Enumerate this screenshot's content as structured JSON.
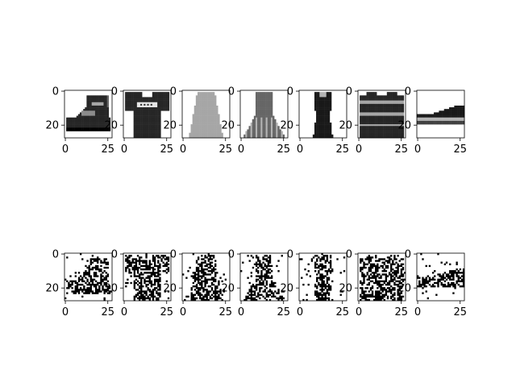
{
  "figure": {
    "rows": [
      {
        "kind": "original",
        "panels": [
          {
            "content": "ankle-boot"
          },
          {
            "content": "t-shirt"
          },
          {
            "content": "dress"
          },
          {
            "content": "dress"
          },
          {
            "content": "dress"
          },
          {
            "content": "pullover"
          },
          {
            "content": "sneaker"
          }
        ]
      },
      {
        "kind": "noisy-reconstruction",
        "panels": [
          {
            "content": "noisy-ankle-boot"
          },
          {
            "content": "noisy-t-shirt"
          },
          {
            "content": "noisy-dress"
          },
          {
            "content": "noisy-dress"
          },
          {
            "content": "noisy-dress"
          },
          {
            "content": "noisy-pullover"
          },
          {
            "content": "noisy-sneaker"
          }
        ]
      }
    ],
    "xticks": [
      "0",
      "25"
    ],
    "yticks": [
      "0",
      "20"
    ],
    "colormap": "gray_r",
    "colors": {
      "pixel_dark": "#000000",
      "background": "#ffffff",
      "axes": "#000000"
    }
  }
}
